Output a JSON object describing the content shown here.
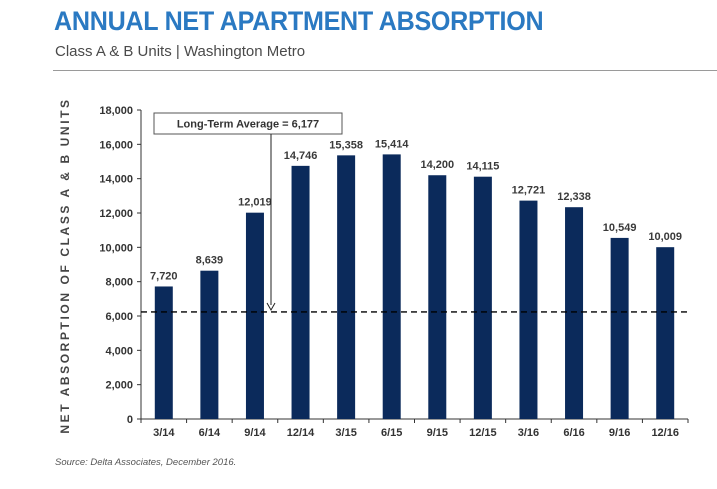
{
  "header": {
    "title": "ANNUAL NET APARTMENT ABSORPTION",
    "subtitle": "Class A & B Units | Washington Metro"
  },
  "footer": {
    "source": "Source: Delta Associates, December 2016."
  },
  "colors": {
    "title": "#2a79c2",
    "bar": "#0b2a5b",
    "average_line": "#000000"
  },
  "chart_data": {
    "type": "bar",
    "categories": [
      "3/14",
      "6/14",
      "9/14",
      "12/14",
      "3/15",
      "6/15",
      "9/15",
      "12/15",
      "3/16",
      "6/16",
      "9/16",
      "12/16"
    ],
    "values": [
      7720,
      8639,
      12019,
      14746,
      15358,
      15414,
      14200,
      14115,
      12721,
      12338,
      10549,
      10009
    ],
    "data_labels": [
      "7,720",
      "8,639",
      "12,019",
      "14,746",
      "15,358",
      "15,414",
      "14,200",
      "14,115",
      "12,721",
      "12,338",
      "10,549",
      "10,009"
    ],
    "yticks": [
      0,
      2000,
      4000,
      6000,
      8000,
      10000,
      12000,
      14000,
      16000,
      18000
    ],
    "ytick_labels": [
      "0",
      "2,000",
      "4,000",
      "6,000",
      "8,000",
      "10,000",
      "12,000",
      "14,000",
      "16,000",
      "18,000"
    ],
    "ylim": [
      0,
      18000
    ],
    "xlabel": "",
    "ylabel": "NET ABSORPTION OF CLASS A & B UNITS",
    "grid": false,
    "reference_line": {
      "value": 6177,
      "label": "Long-Term Average = 6,177",
      "style": "dashed"
    }
  }
}
